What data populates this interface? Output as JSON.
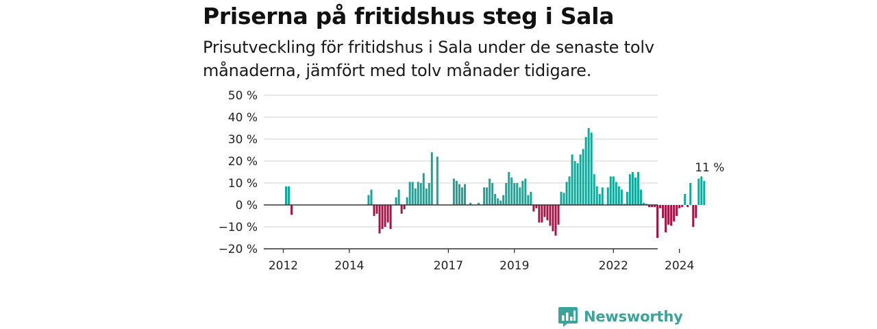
{
  "header": {
    "title": "Priserna på fritidshus steg i Sala",
    "subtitle": "Prisutveckling för fritidshus i Sala under de senaste tolv månaderna, jämfört med tolv månader tidigare."
  },
  "brand": {
    "name": "Newsworthy",
    "color": "#3aa39a",
    "icon": "newsworthy-chart-icon"
  },
  "chart_data": {
    "type": "bar",
    "x_unit": "month",
    "x_start": "2012-01",
    "ylim": [
      -20,
      50
    ],
    "yticks": [
      -20,
      -10,
      0,
      10,
      20,
      30,
      40,
      50
    ],
    "ytick_labels": [
      "−20 %",
      "−10 %",
      "0 %",
      "10 %",
      "20 %",
      "30 %",
      "40 %",
      "50 %"
    ],
    "xticks": [
      "2012",
      "2014",
      "2017",
      "2019",
      "2022",
      "2024"
    ],
    "xtick_months": [
      "2012-01",
      "2014-01",
      "2017-01",
      "2019-01",
      "2022-01",
      "2024-01"
    ],
    "grid": true,
    "colors": {
      "positive": "#14a89b",
      "negative": "#a31447",
      "zero_line": "#333333",
      "grid": "#d9d9d9"
    },
    "annotation": {
      "text": "11 %",
      "month": "2024-12",
      "value": 11
    },
    "values": [
      null,
      8.5,
      8.5,
      -4.5,
      null,
      null,
      null,
      null,
      null,
      null,
      null,
      null,
      null,
      null,
      null,
      null,
      null,
      null,
      null,
      null,
      null,
      null,
      null,
      null,
      null,
      null,
      null,
      null,
      null,
      null,
      null,
      4.5,
      7,
      -5,
      -4,
      -13,
      -11,
      -10,
      -8,
      -11,
      0,
      3.5,
      7,
      -4,
      -2,
      3.5,
      10.5,
      10.5,
      7.5,
      10.5,
      10,
      14.5,
      7.5,
      10,
      24,
      null,
      22,
      null,
      null,
      null,
      null,
      null,
      12,
      11,
      9.5,
      8,
      9.5,
      null,
      1,
      null,
      null,
      1,
      null,
      8,
      8,
      12,
      10,
      5,
      3,
      2,
      4.5,
      10,
      15,
      12.5,
      10,
      10,
      8,
      11,
      12,
      4.5,
      6,
      -3,
      -1.5,
      -8,
      -8,
      -5.5,
      -7,
      -9.5,
      -12,
      -14,
      -9,
      6,
      5.5,
      10.5,
      13,
      23,
      20,
      19,
      23,
      25.5,
      31,
      35,
      33,
      14,
      8.5,
      5,
      8,
      null,
      8,
      13,
      13,
      10.5,
      8.5,
      7,
      0.5,
      6,
      14,
      15,
      12.5,
      15,
      7,
      1,
      0.5,
      -1,
      -1,
      -1,
      -15,
      -1.5,
      -6,
      -12.5,
      -9,
      -9.5,
      -7.5,
      -5,
      -1.5,
      -1,
      5,
      -1,
      10,
      -10,
      -6,
      12,
      13,
      11
    ]
  }
}
